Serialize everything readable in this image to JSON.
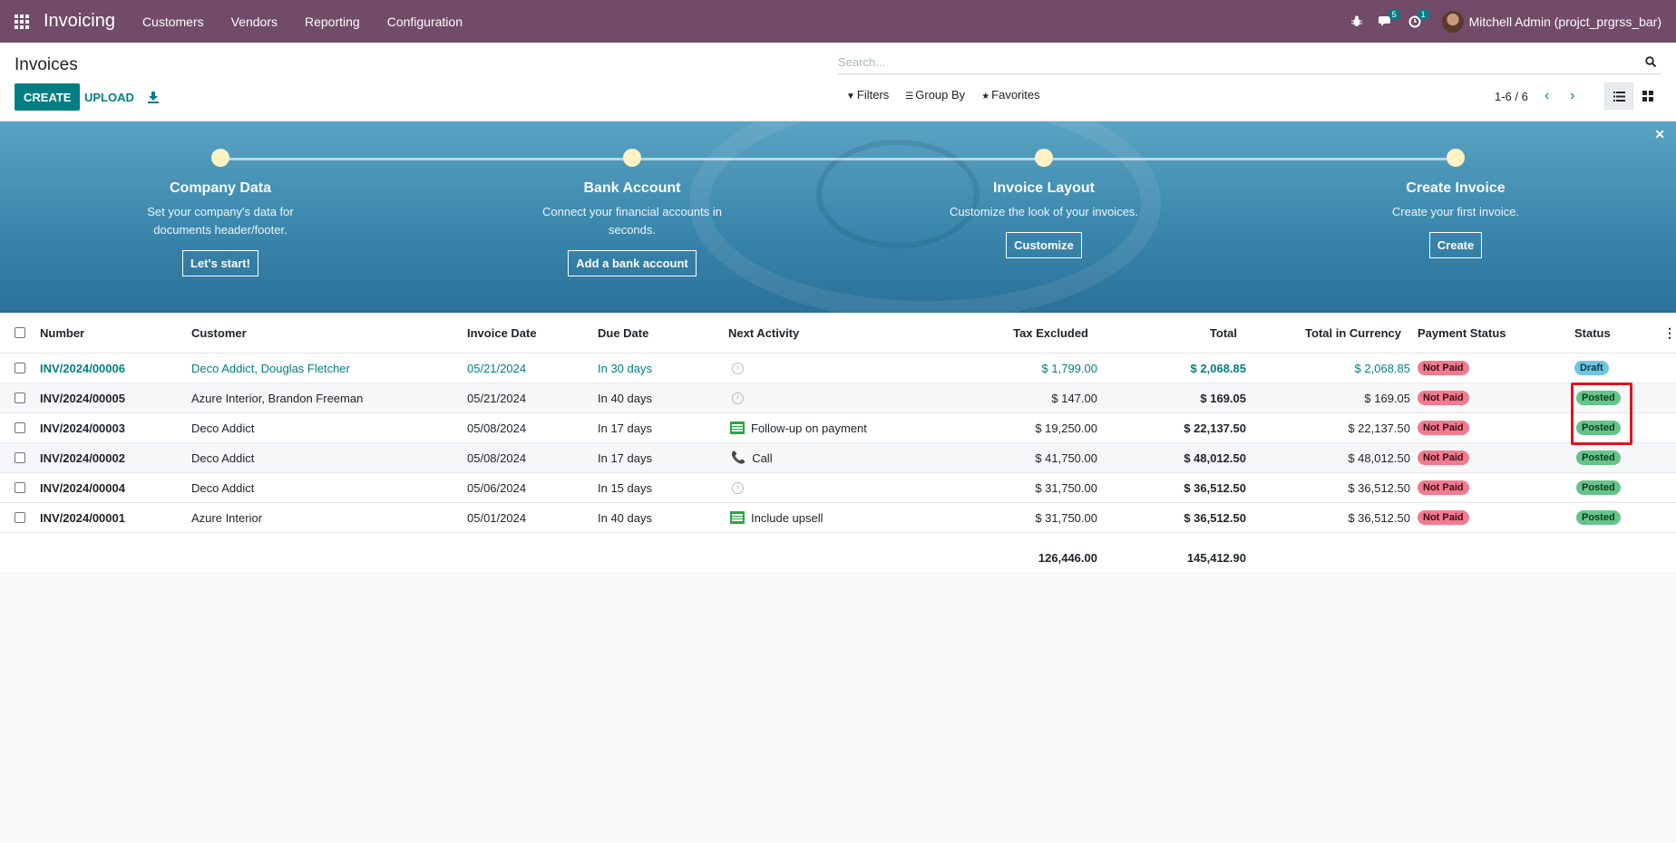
{
  "topnav": {
    "app_name": "Invoicing",
    "menus": [
      "Customers",
      "Vendors",
      "Reporting",
      "Configuration"
    ],
    "messages_count": "5",
    "activities_count": "1",
    "user_name": "Mitchell Admin (projct_prgrss_bar)"
  },
  "control_panel": {
    "title": "Invoices",
    "create_label": "CREATE",
    "upload_label": "UPLOAD",
    "search_placeholder": "Search...",
    "filters_label": "Filters",
    "group_by_label": "Group By",
    "favorites_label": "Favorites",
    "pager": "1-6 / 6"
  },
  "banner": {
    "steps": [
      {
        "title": "Company Data",
        "desc": "Set your company's data for documents header/footer.",
        "button": "Let's start!"
      },
      {
        "title": "Bank Account",
        "desc": "Connect your financial accounts in seconds.",
        "button": "Add a bank account"
      },
      {
        "title": "Invoice Layout",
        "desc": "Customize the look of your invoices.",
        "button": "Customize"
      },
      {
        "title": "Create Invoice",
        "desc": "Create your first invoice.",
        "button": "Create"
      }
    ]
  },
  "table": {
    "columns": [
      "Number",
      "Customer",
      "Invoice Date",
      "Due Date",
      "Next Activity",
      "Tax Excluded",
      "Total",
      "Total in Currency",
      "Payment Status",
      "Status"
    ],
    "rows": [
      {
        "number": "INV/2024/00006",
        "customer": "Deco Addict, Douglas Fletcher",
        "invoice_date": "05/21/2024",
        "due_date": "In 30 days",
        "activity": "",
        "activity_type": "clock",
        "tax_excluded": "$ 1,799.00",
        "total": "$ 2,068.85",
        "total_currency": "$ 2,068.85",
        "payment_status": "Not Paid",
        "status": "Draft"
      },
      {
        "number": "INV/2024/00005",
        "customer": "Azure Interior, Brandon Freeman",
        "invoice_date": "05/21/2024",
        "due_date": "In 40 days",
        "activity": "",
        "activity_type": "clock",
        "tax_excluded": "$ 147.00",
        "total": "$ 169.05",
        "total_currency": "$ 169.05",
        "payment_status": "Not Paid",
        "status": "Posted"
      },
      {
        "number": "INV/2024/00003",
        "customer": "Deco Addict",
        "invoice_date": "05/08/2024",
        "due_date": "In 17 days",
        "activity": "Follow-up on payment",
        "activity_type": "todo",
        "tax_excluded": "$ 19,250.00",
        "total": "$ 22,137.50",
        "total_currency": "$ 22,137.50",
        "payment_status": "Not Paid",
        "status": "Posted"
      },
      {
        "number": "INV/2024/00002",
        "customer": "Deco Addict",
        "invoice_date": "05/08/2024",
        "due_date": "In 17 days",
        "activity": "Call",
        "activity_type": "phone",
        "tax_excluded": "$ 41,750.00",
        "total": "$ 48,012.50",
        "total_currency": "$ 48,012.50",
        "payment_status": "Not Paid",
        "status": "Posted"
      },
      {
        "number": "INV/2024/00004",
        "customer": "Deco Addict",
        "invoice_date": "05/06/2024",
        "due_date": "In 15 days",
        "activity": "",
        "activity_type": "clock",
        "tax_excluded": "$ 31,750.00",
        "total": "$ 36,512.50",
        "total_currency": "$ 36,512.50",
        "payment_status": "Not Paid",
        "status": "Posted"
      },
      {
        "number": "INV/2024/00001",
        "customer": "Azure Interior",
        "invoice_date": "05/01/2024",
        "due_date": "In 40 days",
        "activity": "Include upsell",
        "activity_type": "todo",
        "tax_excluded": "$ 31,750.00",
        "total": "$ 36,512.50",
        "total_currency": "$ 36,512.50",
        "payment_status": "Not Paid",
        "status": "Posted"
      }
    ],
    "totals": {
      "tax_excluded": "126,446.00",
      "total": "145,412.90"
    }
  },
  "colors": {
    "nav_bg": "#714b67",
    "primary": "#017e84",
    "not_paid": "#f17b8e",
    "posted": "#66c389",
    "draft": "#6ec6e2",
    "highlight": "#e0131f"
  },
  "icons": {
    "apps": "grid-icon",
    "bug": "bug-icon",
    "messages": "chat-icon",
    "activities": "clock-icon",
    "search": "search-icon",
    "download": "download-icon",
    "close": "close-icon"
  }
}
